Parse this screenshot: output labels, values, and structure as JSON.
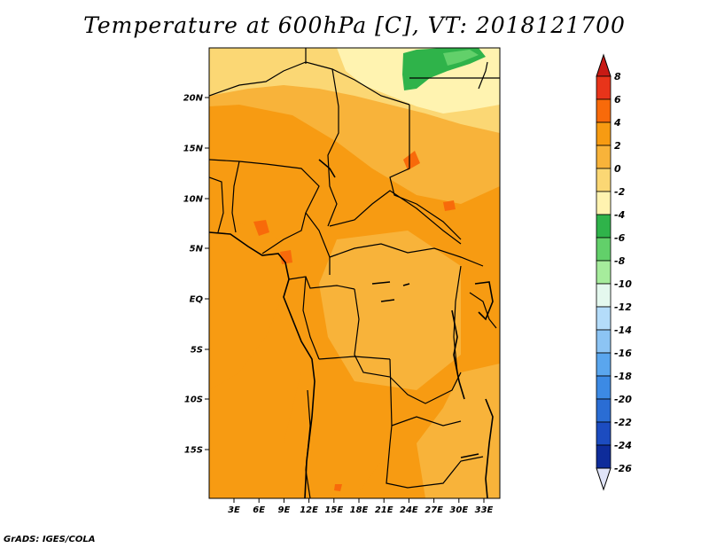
{
  "title": "Temperature at 600hPa [C], VT: 2018121700",
  "footer": "GrADS: IGES/COLA",
  "y_ticks": [
    "20N",
    "15N",
    "10N",
    "5N",
    "EQ",
    "5S",
    "10S",
    "15S"
  ],
  "x_ticks": [
    "3E",
    "6E",
    "9E",
    "12E",
    "15E",
    "18E",
    "21E",
    "24E",
    "27E",
    "30E",
    "33E"
  ],
  "colorbar": {
    "levels": [
      "8",
      "6",
      "4",
      "2",
      "0",
      "-2",
      "-4",
      "-6",
      "-8",
      "-10",
      "-12",
      "-14",
      "-16",
      "-18",
      "-20",
      "-22",
      "-24",
      "-26"
    ],
    "colors": [
      "#e8341a",
      "#f86a0a",
      "#f79b12",
      "#f8b33a",
      "#fbd774",
      "#fff3b0",
      "#2fb34a",
      "#62d06a",
      "#a6ec9c",
      "#e4f8ee",
      "#b4dcfa",
      "#8cc4f4",
      "#5aa6ee",
      "#3c8ae4",
      "#2a6dd4",
      "#1c4cc0",
      "#0e2c9a",
      "#0a1060"
    ],
    "top_arrow_color": "#c81a14",
    "bottom_arrow_color": "#e0e4f8"
  },
  "field_colors": {
    "c_light": "#fff3b0",
    "c_pale": "#fbd774",
    "c_mid": "#f8b33a",
    "c_warm": "#f79b12",
    "c_hot": "#f86a0a",
    "c_green": "#2fb34a",
    "c_green_light": "#62d06a"
  }
}
